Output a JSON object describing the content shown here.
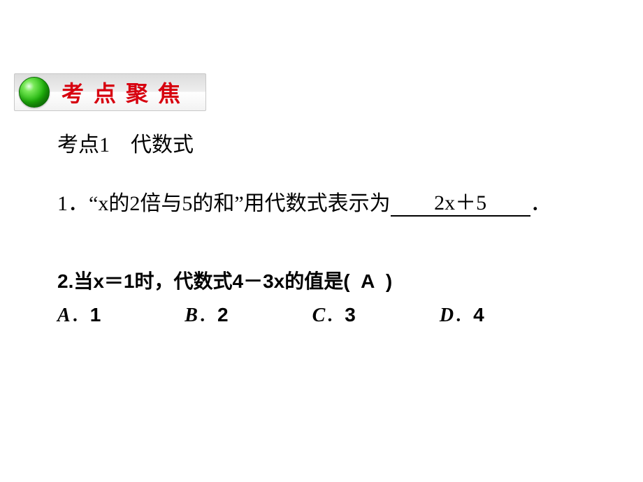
{
  "colors": {
    "badge_text": "#d7000f",
    "sphere_light": "#78e858",
    "sphere_mid": "#1fb40b",
    "sphere_dark": "#0a7a04",
    "text": "#000000",
    "page_bg": "#ffffff",
    "badge_border": "#c8c8c8"
  },
  "badge": {
    "chars": [
      "考",
      "点",
      "聚",
      "焦"
    ]
  },
  "heading": "考点1　代数式",
  "q1": {
    "prefix": "1．“x的2倍与5的和”用代数式表示为",
    "answer": "2x＋5",
    "suffix": "．"
  },
  "q2": {
    "stem_before": "2.当x＝1时，代数式4－3x的值是(",
    "answer_in_paren": "A",
    "stem_after": ")",
    "options": [
      {
        "letter": "A",
        "value": "1"
      },
      {
        "letter": "B",
        "value": "2"
      },
      {
        "letter": "C",
        "value": "3"
      },
      {
        "letter": "D",
        "value": "4"
      }
    ]
  }
}
